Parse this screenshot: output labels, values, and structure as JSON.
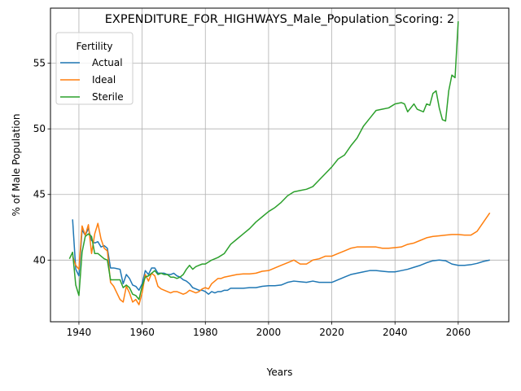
{
  "chart_data": {
    "type": "line",
    "title": "EXPENDITURE_FOR_HIGHWAYS_Male_Population_Scoring: 2",
    "xlabel": "Years",
    "ylabel": "% of Male Population",
    "xlim": [
      1931,
      2076
    ],
    "ylim": [
      35.3,
      59.2
    ],
    "xticks": [
      1940,
      1960,
      1980,
      2000,
      2020,
      2040,
      2060
    ],
    "yticks": [
      40,
      45,
      50,
      55
    ],
    "grid": true,
    "legend": {
      "title": "Fertility",
      "position": "top-left"
    },
    "series": [
      {
        "name": "Actual",
        "color": "#1f77b4",
        "points": [
          [
            1938,
            43.1
          ],
          [
            1939,
            39.3
          ],
          [
            1940,
            38.8
          ],
          [
            1941,
            42.3
          ],
          [
            1942,
            41.9
          ],
          [
            1943,
            42.4
          ],
          [
            1944,
            41.5
          ],
          [
            1945,
            41.3
          ],
          [
            1946,
            41.4
          ],
          [
            1947,
            41.0
          ],
          [
            1948,
            41.1
          ],
          [
            1949,
            40.9
          ],
          [
            1950,
            39.4
          ],
          [
            1951,
            39.4
          ],
          [
            1952,
            39.35
          ],
          [
            1953,
            39.3
          ],
          [
            1954,
            38.2
          ],
          [
            1955,
            38.9
          ],
          [
            1956,
            38.6
          ],
          [
            1957,
            38.1
          ],
          [
            1958,
            38.0
          ],
          [
            1959,
            37.7
          ],
          [
            1960,
            38.2
          ],
          [
            1961,
            39.2
          ],
          [
            1962,
            38.9
          ],
          [
            1963,
            39.4
          ],
          [
            1964,
            39.4
          ],
          [
            1965,
            39.0
          ],
          [
            1966,
            39.0
          ],
          [
            1967,
            39.0
          ],
          [
            1968,
            38.9
          ],
          [
            1969,
            38.9
          ],
          [
            1970,
            39.0
          ],
          [
            1971,
            38.8
          ],
          [
            1972,
            38.7
          ],
          [
            1973,
            38.5
          ],
          [
            1974,
            38.4
          ],
          [
            1975,
            38.2
          ],
          [
            1976,
            37.9
          ],
          [
            1977,
            37.8
          ],
          [
            1978,
            37.7
          ],
          [
            1979,
            37.7
          ],
          [
            1980,
            37.6
          ],
          [
            1981,
            37.4
          ],
          [
            1982,
            37.6
          ],
          [
            1983,
            37.5
          ],
          [
            1984,
            37.6
          ],
          [
            1985,
            37.6
          ],
          [
            1986,
            37.7
          ],
          [
            1987,
            37.7
          ],
          [
            1988,
            37.85
          ],
          [
            1989,
            37.85
          ],
          [
            1990,
            37.85
          ],
          [
            1992,
            37.85
          ],
          [
            1994,
            37.9
          ],
          [
            1996,
            37.9
          ],
          [
            1998,
            38.0
          ],
          [
            2000,
            38.05
          ],
          [
            2002,
            38.05
          ],
          [
            2004,
            38.1
          ],
          [
            2006,
            38.3
          ],
          [
            2008,
            38.4
          ],
          [
            2010,
            38.35
          ],
          [
            2012,
            38.3
          ],
          [
            2014,
            38.4
          ],
          [
            2016,
            38.3
          ],
          [
            2018,
            38.3
          ],
          [
            2020,
            38.3
          ],
          [
            2022,
            38.5
          ],
          [
            2024,
            38.7
          ],
          [
            2026,
            38.9
          ],
          [
            2028,
            39.0
          ],
          [
            2030,
            39.1
          ],
          [
            2032,
            39.2
          ],
          [
            2034,
            39.2
          ],
          [
            2036,
            39.15
          ],
          [
            2038,
            39.1
          ],
          [
            2040,
            39.1
          ],
          [
            2042,
            39.2
          ],
          [
            2044,
            39.3
          ],
          [
            2046,
            39.45
          ],
          [
            2048,
            39.6
          ],
          [
            2050,
            39.8
          ],
          [
            2052,
            39.95
          ],
          [
            2054,
            40.0
          ],
          [
            2056,
            39.95
          ],
          [
            2058,
            39.7
          ],
          [
            2060,
            39.6
          ],
          [
            2062,
            39.6
          ],
          [
            2064,
            39.65
          ],
          [
            2066,
            39.75
          ],
          [
            2068,
            39.9
          ],
          [
            2070,
            40.0
          ]
        ]
      },
      {
        "name": "Ideal",
        "color": "#ff7f0e",
        "points": [
          [
            1938,
            40.3
          ],
          [
            1939,
            39.6
          ],
          [
            1940,
            39.3
          ],
          [
            1941,
            42.6
          ],
          [
            1942,
            41.9
          ],
          [
            1943,
            42.7
          ],
          [
            1944,
            40.5
          ],
          [
            1945,
            42.0
          ],
          [
            1946,
            42.8
          ],
          [
            1947,
            41.6
          ],
          [
            1948,
            40.9
          ],
          [
            1949,
            40.7
          ],
          [
            1950,
            38.3
          ],
          [
            1951,
            38.0
          ],
          [
            1952,
            37.5
          ],
          [
            1953,
            37.0
          ],
          [
            1954,
            36.8
          ],
          [
            1955,
            38.0
          ],
          [
            1956,
            37.5
          ],
          [
            1957,
            36.8
          ],
          [
            1958,
            37.0
          ],
          [
            1959,
            36.6
          ],
          [
            1960,
            37.5
          ],
          [
            1961,
            38.9
          ],
          [
            1962,
            38.4
          ],
          [
            1963,
            39.0
          ],
          [
            1964,
            38.8
          ],
          [
            1965,
            38.0
          ],
          [
            1966,
            37.8
          ],
          [
            1967,
            37.7
          ],
          [
            1968,
            37.6
          ],
          [
            1969,
            37.5
          ],
          [
            1970,
            37.6
          ],
          [
            1971,
            37.6
          ],
          [
            1972,
            37.5
          ],
          [
            1973,
            37.4
          ],
          [
            1974,
            37.5
          ],
          [
            1975,
            37.7
          ],
          [
            1976,
            37.6
          ],
          [
            1977,
            37.5
          ],
          [
            1978,
            37.6
          ],
          [
            1979,
            37.8
          ],
          [
            1980,
            37.9
          ],
          [
            1981,
            37.8
          ],
          [
            1982,
            38.2
          ],
          [
            1983,
            38.4
          ],
          [
            1984,
            38.6
          ],
          [
            1985,
            38.6
          ],
          [
            1986,
            38.7
          ],
          [
            1988,
            38.8
          ],
          [
            1990,
            38.9
          ],
          [
            1992,
            38.95
          ],
          [
            1994,
            38.95
          ],
          [
            1996,
            39.0
          ],
          [
            1998,
            39.15
          ],
          [
            2000,
            39.2
          ],
          [
            2002,
            39.4
          ],
          [
            2004,
            39.6
          ],
          [
            2006,
            39.8
          ],
          [
            2008,
            40.0
          ],
          [
            2010,
            39.7
          ],
          [
            2012,
            39.7
          ],
          [
            2014,
            40.0
          ],
          [
            2016,
            40.1
          ],
          [
            2018,
            40.3
          ],
          [
            2020,
            40.3
          ],
          [
            2022,
            40.5
          ],
          [
            2024,
            40.7
          ],
          [
            2026,
            40.9
          ],
          [
            2028,
            41.0
          ],
          [
            2030,
            41.0
          ],
          [
            2032,
            41.0
          ],
          [
            2034,
            41.0
          ],
          [
            2036,
            40.9
          ],
          [
            2038,
            40.9
          ],
          [
            2040,
            40.95
          ],
          [
            2042,
            41.0
          ],
          [
            2044,
            41.2
          ],
          [
            2046,
            41.3
          ],
          [
            2048,
            41.5
          ],
          [
            2050,
            41.7
          ],
          [
            2052,
            41.8
          ],
          [
            2054,
            41.85
          ],
          [
            2056,
            41.9
          ],
          [
            2058,
            41.95
          ],
          [
            2060,
            41.95
          ],
          [
            2062,
            41.9
          ],
          [
            2064,
            41.9
          ],
          [
            2066,
            42.2
          ],
          [
            2068,
            42.9
          ],
          [
            2070,
            43.6
          ]
        ]
      },
      {
        "name": "Sterile",
        "color": "#2ca02c",
        "points": [
          [
            1937,
            40.1
          ],
          [
            1938,
            40.6
          ],
          [
            1939,
            38.1
          ],
          [
            1940,
            37.3
          ],
          [
            1941,
            40.6
          ],
          [
            1942,
            41.8
          ],
          [
            1943,
            42.0
          ],
          [
            1944,
            41.8
          ],
          [
            1945,
            40.5
          ],
          [
            1946,
            40.5
          ],
          [
            1947,
            40.3
          ],
          [
            1948,
            40.1
          ],
          [
            1949,
            40.0
          ],
          [
            1950,
            38.5
          ],
          [
            1951,
            38.5
          ],
          [
            1952,
            38.5
          ],
          [
            1953,
            38.5
          ],
          [
            1954,
            37.9
          ],
          [
            1955,
            38.1
          ],
          [
            1956,
            37.9
          ],
          [
            1957,
            37.4
          ],
          [
            1958,
            37.3
          ],
          [
            1959,
            37.0
          ],
          [
            1960,
            38.0
          ],
          [
            1961,
            38.7
          ],
          [
            1962,
            38.8
          ],
          [
            1963,
            39.0
          ],
          [
            1964,
            39.2
          ],
          [
            1965,
            38.9
          ],
          [
            1966,
            39.0
          ],
          [
            1967,
            38.9
          ],
          [
            1968,
            38.9
          ],
          [
            1969,
            38.7
          ],
          [
            1970,
            38.7
          ],
          [
            1971,
            38.6
          ],
          [
            1972,
            38.7
          ],
          [
            1973,
            38.9
          ],
          [
            1974,
            39.3
          ],
          [
            1975,
            39.6
          ],
          [
            1976,
            39.3
          ],
          [
            1977,
            39.5
          ],
          [
            1978,
            39.6
          ],
          [
            1979,
            39.7
          ],
          [
            1980,
            39.7
          ],
          [
            1982,
            40.0
          ],
          [
            1984,
            40.2
          ],
          [
            1986,
            40.5
          ],
          [
            1988,
            41.2
          ],
          [
            1990,
            41.6
          ],
          [
            1992,
            42.0
          ],
          [
            1994,
            42.4
          ],
          [
            1996,
            42.9
          ],
          [
            1998,
            43.3
          ],
          [
            2000,
            43.7
          ],
          [
            2002,
            44.0
          ],
          [
            2004,
            44.4
          ],
          [
            2006,
            44.9
          ],
          [
            2008,
            45.2
          ],
          [
            2010,
            45.3
          ],
          [
            2012,
            45.4
          ],
          [
            2014,
            45.6
          ],
          [
            2016,
            46.1
          ],
          [
            2018,
            46.6
          ],
          [
            2020,
            47.1
          ],
          [
            2022,
            47.7
          ],
          [
            2024,
            48.0
          ],
          [
            2026,
            48.7
          ],
          [
            2028,
            49.3
          ],
          [
            2030,
            50.2
          ],
          [
            2032,
            50.8
          ],
          [
            2034,
            51.4
          ],
          [
            2036,
            51.5
          ],
          [
            2038,
            51.6
          ],
          [
            2040,
            51.9
          ],
          [
            2042,
            52.0
          ],
          [
            2043,
            51.9
          ],
          [
            2044,
            51.3
          ],
          [
            2045,
            51.6
          ],
          [
            2046,
            51.9
          ],
          [
            2047,
            51.5
          ],
          [
            2048,
            51.4
          ],
          [
            2049,
            51.3
          ],
          [
            2050,
            51.9
          ],
          [
            2051,
            51.8
          ],
          [
            2052,
            52.7
          ],
          [
            2053,
            52.9
          ],
          [
            2054,
            51.6
          ],
          [
            2055,
            50.7
          ],
          [
            2056,
            50.6
          ],
          [
            2057,
            52.9
          ],
          [
            2058,
            54.1
          ],
          [
            2059,
            53.9
          ],
          [
            2060,
            58.2
          ]
        ]
      }
    ]
  }
}
